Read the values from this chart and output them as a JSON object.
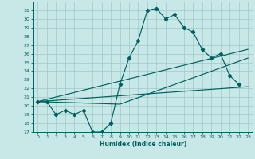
{
  "xlabel": "Humidex (Indice chaleur)",
  "background_color": "#c8e8e8",
  "grid_color": "#a0c8c8",
  "line_color": "#006060",
  "xlim": [
    -0.5,
    23.5
  ],
  "ylim": [
    17,
    32
  ],
  "xticks": [
    0,
    1,
    2,
    3,
    4,
    5,
    6,
    7,
    8,
    9,
    10,
    11,
    12,
    13,
    14,
    15,
    16,
    17,
    18,
    19,
    20,
    21,
    22,
    23
  ],
  "yticks": [
    17,
    18,
    19,
    20,
    21,
    22,
    23,
    24,
    25,
    26,
    27,
    28,
    29,
    30,
    31
  ],
  "main_x": [
    0,
    1,
    2,
    3,
    4,
    5,
    6,
    7,
    8,
    9,
    10,
    11,
    12,
    13,
    14,
    15,
    16,
    17,
    18,
    19,
    20,
    21,
    22
  ],
  "main_y": [
    20.5,
    20.5,
    19.0,
    19.5,
    19.0,
    19.5,
    17.0,
    17.0,
    18.0,
    22.5,
    25.5,
    27.5,
    31.0,
    31.2,
    30.0,
    30.5,
    29.0,
    28.5,
    26.5,
    25.5,
    26.0,
    23.5,
    22.5
  ],
  "line2_x": [
    0,
    23
  ],
  "line2_y": [
    20.5,
    22.2
  ],
  "line3_x": [
    0,
    23
  ],
  "line3_y": [
    20.5,
    26.5
  ],
  "line4_x": [
    0,
    9,
    23
  ],
  "line4_y": [
    20.5,
    20.2,
    25.5
  ]
}
